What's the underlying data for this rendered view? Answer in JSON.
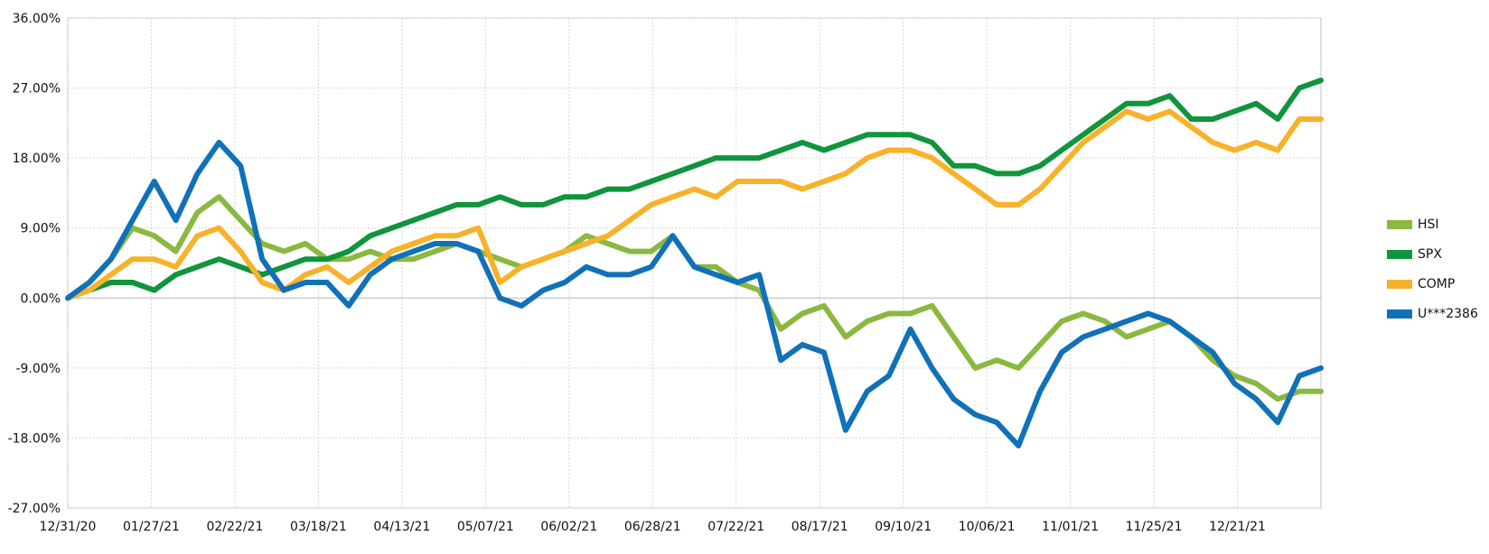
{
  "chart_data": {
    "type": "line",
    "title": "",
    "xlabel": "",
    "ylabel": "",
    "ylim": [
      -27,
      36
    ],
    "y_ticks": [
      36,
      27,
      18,
      9,
      0,
      -9,
      -18,
      -27
    ],
    "y_tick_labels": [
      "36.00%",
      "27.00%",
      "18.00%",
      "9.00%",
      "0.00%",
      "-9.00%",
      "-18.00%",
      "-27.00%"
    ],
    "x_tick_labels": [
      "12/31/20",
      "01/27/21",
      "02/22/21",
      "03/18/21",
      "04/13/21",
      "05/07/21",
      "06/02/21",
      "06/28/21",
      "07/22/21",
      "08/17/21",
      "09/10/21",
      "10/06/21",
      "11/01/21",
      "11/25/21",
      "12/21/21"
    ],
    "x": [
      "12/31/20",
      "01/08/21",
      "01/15/21",
      "01/22/21",
      "01/27/21",
      "02/01/21",
      "02/08/21",
      "02/15/21",
      "02/22/21",
      "03/01/21",
      "03/08/21",
      "03/15/21",
      "03/18/21",
      "03/25/21",
      "04/01/21",
      "04/08/21",
      "04/13/21",
      "04/20/21",
      "04/27/21",
      "05/03/21",
      "05/07/21",
      "05/14/21",
      "05/21/21",
      "05/27/21",
      "06/02/21",
      "06/09/21",
      "06/16/21",
      "06/22/21",
      "06/28/21",
      "07/05/21",
      "07/12/21",
      "07/16/21",
      "07/22/21",
      "07/29/21",
      "08/05/21",
      "08/11/21",
      "08/17/21",
      "08/24/21",
      "08/31/21",
      "09/06/21",
      "09/10/21",
      "09/17/21",
      "09/24/21",
      "09/30/21",
      "10/06/21",
      "10/13/21",
      "10/20/21",
      "10/26/21",
      "11/01/21",
      "11/08/21",
      "11/15/21",
      "11/19/21",
      "11/25/21",
      "12/02/21",
      "12/09/21",
      "12/15/21",
      "12/21/21",
      "12/28/21",
      "12/31/21"
    ],
    "series": [
      {
        "name": "HSI",
        "color": "#8ab840",
        "values": [
          0,
          2,
          5,
          9,
          8,
          6,
          11,
          13,
          10,
          7,
          6,
          7,
          5,
          5,
          6,
          5,
          5,
          6,
          7,
          6,
          5,
          4,
          5,
          6,
          8,
          7,
          6,
          6,
          8,
          4,
          4,
          2,
          1,
          -4,
          -2,
          -1,
          -5,
          -3,
          -2,
          -2,
          -1,
          -5,
          -9,
          -8,
          -9,
          -6,
          -3,
          -2,
          -3,
          -5,
          -4,
          -3,
          -5,
          -8,
          -10,
          -11,
          -13,
          -12,
          -12
        ]
      },
      {
        "name": "SPX",
        "color": "#10943c",
        "values": [
          0,
          1,
          2,
          2,
          1,
          3,
          4,
          5,
          4,
          3,
          4,
          5,
          5,
          6,
          8,
          9,
          10,
          11,
          12,
          12,
          13,
          12,
          12,
          13,
          13,
          14,
          14,
          15,
          16,
          17,
          18,
          18,
          18,
          19,
          20,
          19,
          20,
          21,
          21,
          21,
          20,
          17,
          17,
          16,
          16,
          17,
          19,
          21,
          23,
          25,
          25,
          26,
          23,
          23,
          24,
          25,
          23,
          27,
          28
        ]
      },
      {
        "name": "COMP",
        "color": "#f8b22a",
        "values": [
          0,
          1,
          3,
          5,
          5,
          4,
          8,
          9,
          6,
          2,
          1,
          3,
          4,
          2,
          4,
          6,
          7,
          8,
          8,
          9,
          2,
          4,
          5,
          6,
          7,
          8,
          10,
          12,
          13,
          14,
          13,
          15,
          15,
          15,
          14,
          15,
          16,
          18,
          19,
          19,
          18,
          16,
          14,
          12,
          12,
          14,
          17,
          20,
          22,
          24,
          23,
          24,
          22,
          20,
          19,
          20,
          19,
          23,
          23
        ]
      },
      {
        "name": "U***2386",
        "color": "#1071b8",
        "values": [
          0,
          2,
          5,
          10,
          15,
          10,
          16,
          20,
          17,
          5,
          1,
          2,
          2,
          -1,
          3,
          5,
          6,
          7,
          7,
          6,
          0,
          -1,
          1,
          2,
          4,
          3,
          3,
          4,
          8,
          4,
          3,
          2,
          3,
          -8,
          -6,
          -7,
          -17,
          -12,
          -10,
          -4,
          -9,
          -13,
          -15,
          -16,
          -19,
          -12,
          -7,
          -5,
          -4,
          -3,
          -2,
          -3,
          -5,
          -7,
          -11,
          -13,
          -16,
          -10,
          -9
        ]
      }
    ],
    "grid": true,
    "legend_position": "right"
  }
}
